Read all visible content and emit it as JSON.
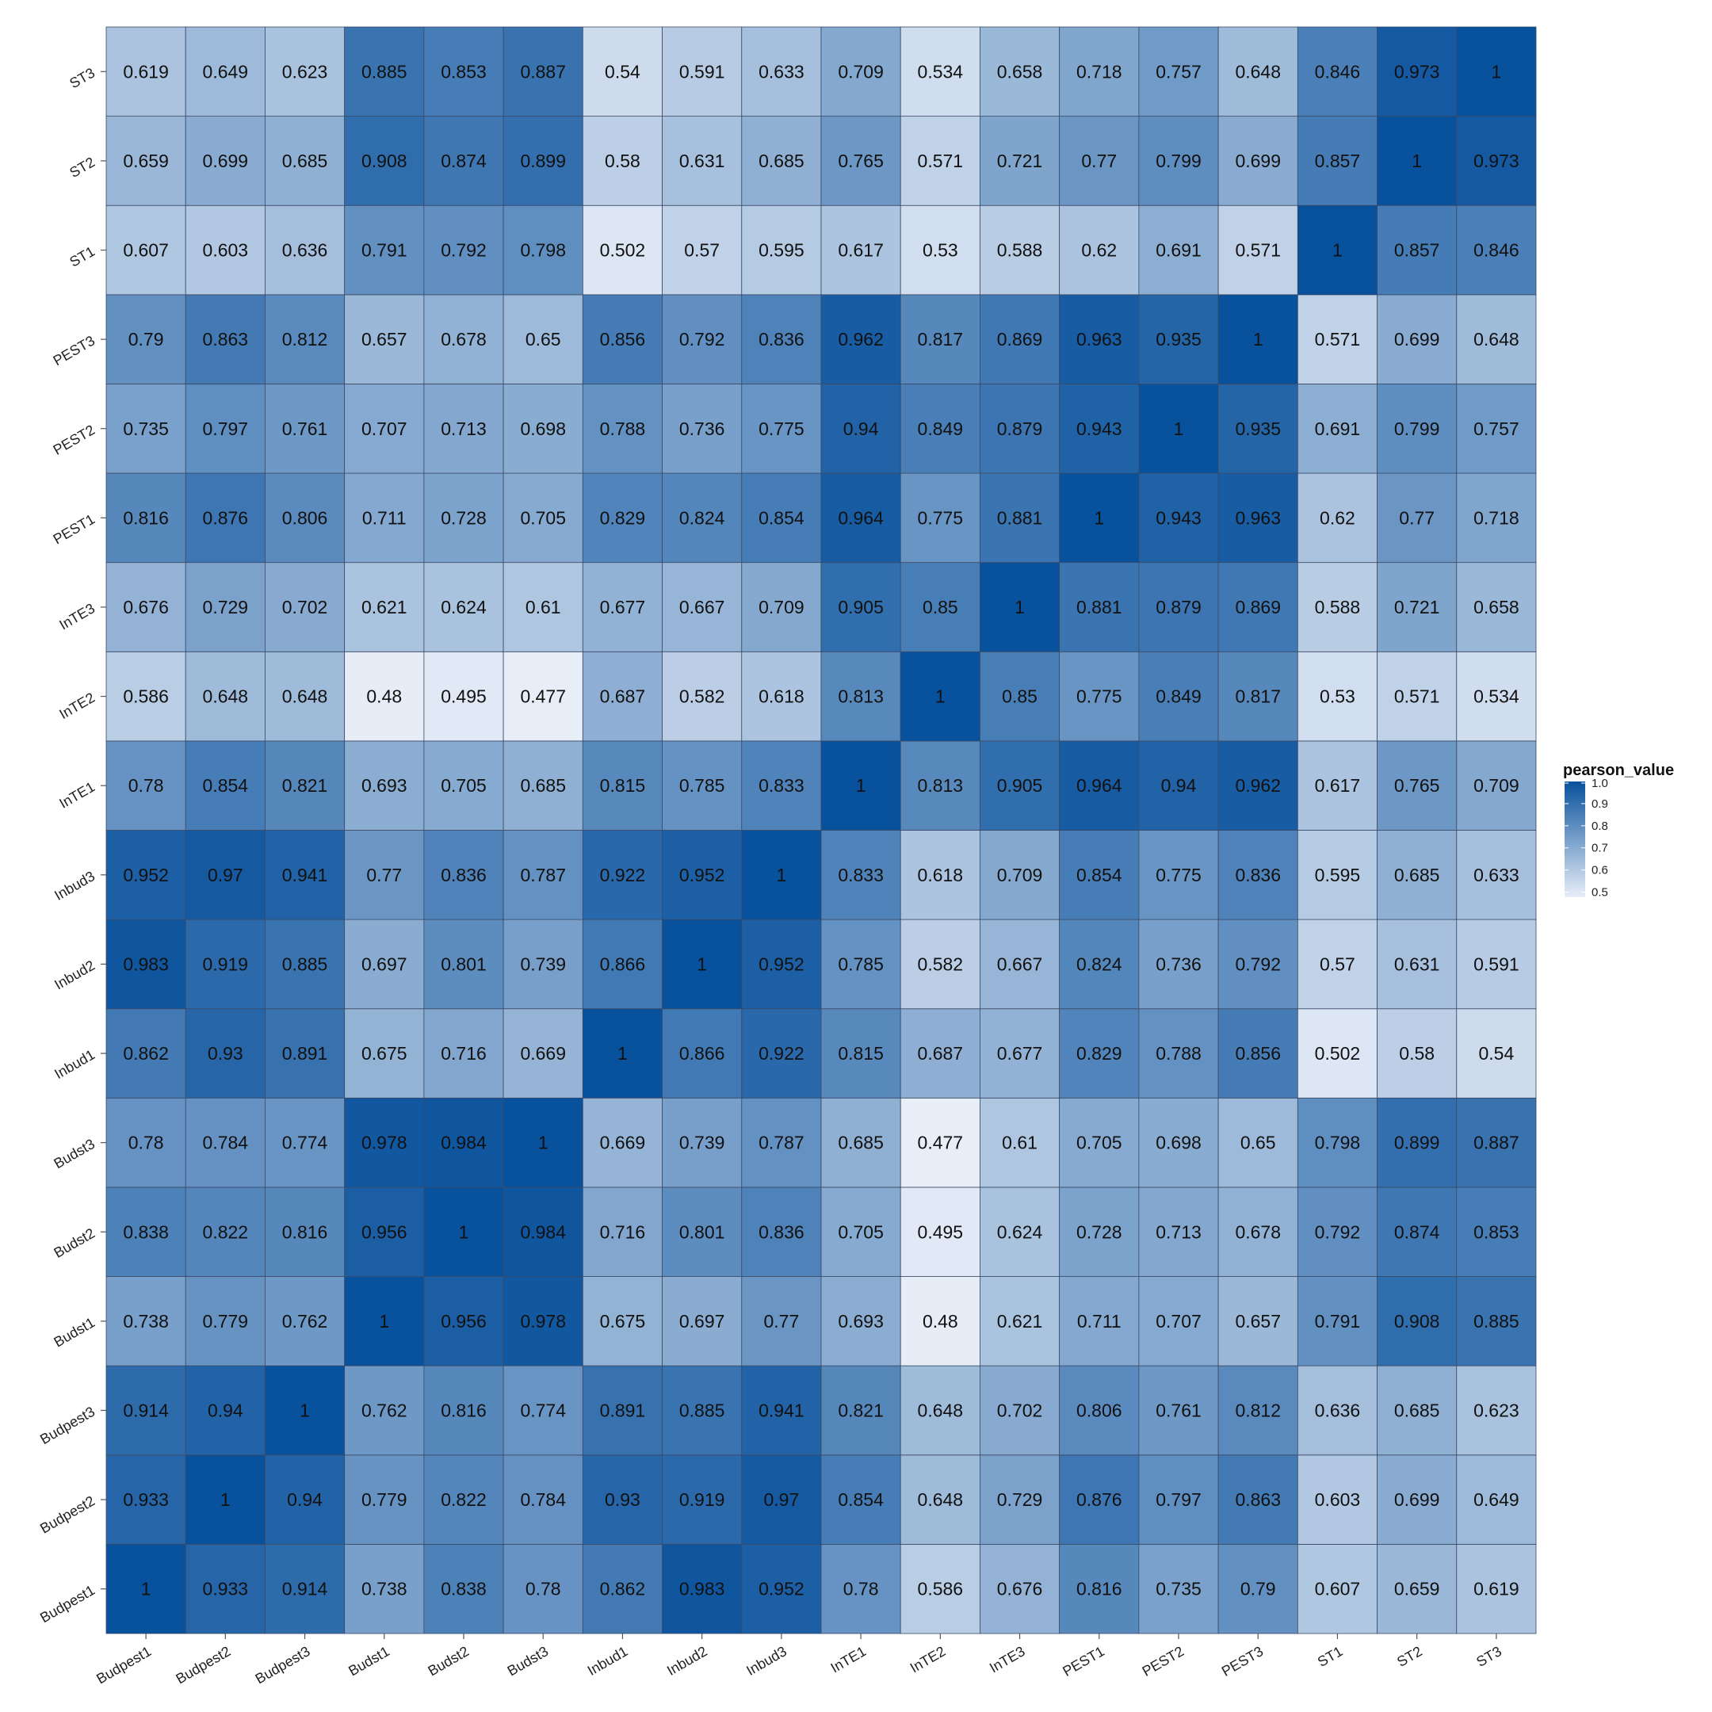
{
  "chart_data": {
    "type": "heatmap",
    "title": "",
    "xlabel": "",
    "ylabel": "",
    "x_categories": [
      "Budpest1",
      "Budpest2",
      "Budpest3",
      "Budst1",
      "Budst2",
      "Budst3",
      "Inbud1",
      "Inbud2",
      "Inbud3",
      "InTE1",
      "InTE2",
      "InTE3",
      "PEST1",
      "PEST2",
      "PEST3",
      "ST1",
      "ST2",
      "ST3"
    ],
    "y_categories": [
      "Budpest1",
      "Budpest2",
      "Budpest3",
      "Budst1",
      "Budst2",
      "Budst3",
      "Inbud1",
      "Inbud2",
      "Inbud3",
      "InTE1",
      "InTE2",
      "InTE3",
      "PEST1",
      "PEST2",
      "PEST3",
      "ST1",
      "ST2",
      "ST3"
    ],
    "values": [
      [
        "1",
        "0.933",
        "0.914",
        "0.738",
        "0.838",
        "0.78",
        "0.862",
        "0.983",
        "0.952",
        "0.78",
        "0.586",
        "0.676",
        "0.816",
        "0.735",
        "0.79",
        "0.607",
        "0.659",
        "0.619"
      ],
      [
        "0.933",
        "1",
        "0.94",
        "0.779",
        "0.822",
        "0.784",
        "0.93",
        "0.919",
        "0.97",
        "0.854",
        "0.648",
        "0.729",
        "0.876",
        "0.797",
        "0.863",
        "0.603",
        "0.699",
        "0.649"
      ],
      [
        "0.914",
        "0.94",
        "1",
        "0.762",
        "0.816",
        "0.774",
        "0.891",
        "0.885",
        "0.941",
        "0.821",
        "0.648",
        "0.702",
        "0.806",
        "0.761",
        "0.812",
        "0.636",
        "0.685",
        "0.623"
      ],
      [
        "0.738",
        "0.779",
        "0.762",
        "1",
        "0.956",
        "0.978",
        "0.675",
        "0.697",
        "0.77",
        "0.693",
        "0.48",
        "0.621",
        "0.711",
        "0.707",
        "0.657",
        "0.791",
        "0.908",
        "0.885"
      ],
      [
        "0.838",
        "0.822",
        "0.816",
        "0.956",
        "1",
        "0.984",
        "0.716",
        "0.801",
        "0.836",
        "0.705",
        "0.495",
        "0.624",
        "0.728",
        "0.713",
        "0.678",
        "0.792",
        "0.874",
        "0.853"
      ],
      [
        "0.78",
        "0.784",
        "0.774",
        "0.978",
        "0.984",
        "1",
        "0.669",
        "0.739",
        "0.787",
        "0.685",
        "0.477",
        "0.61",
        "0.705",
        "0.698",
        "0.65",
        "0.798",
        "0.899",
        "0.887"
      ],
      [
        "0.862",
        "0.93",
        "0.891",
        "0.675",
        "0.716",
        "0.669",
        "1",
        "0.866",
        "0.922",
        "0.815",
        "0.687",
        "0.677",
        "0.829",
        "0.788",
        "0.856",
        "0.502",
        "0.58",
        "0.54"
      ],
      [
        "0.983",
        "0.919",
        "0.885",
        "0.697",
        "0.801",
        "0.739",
        "0.866",
        "1",
        "0.952",
        "0.785",
        "0.582",
        "0.667",
        "0.824",
        "0.736",
        "0.792",
        "0.57",
        "0.631",
        "0.591"
      ],
      [
        "0.952",
        "0.97",
        "0.941",
        "0.77",
        "0.836",
        "0.787",
        "0.922",
        "0.952",
        "1",
        "0.833",
        "0.618",
        "0.709",
        "0.854",
        "0.775",
        "0.836",
        "0.595",
        "0.685",
        "0.633"
      ],
      [
        "0.78",
        "0.854",
        "0.821",
        "0.693",
        "0.705",
        "0.685",
        "0.815",
        "0.785",
        "0.833",
        "1",
        "0.813",
        "0.905",
        "0.964",
        "0.94",
        "0.962",
        "0.617",
        "0.765",
        "0.709"
      ],
      [
        "0.586",
        "0.648",
        "0.648",
        "0.48",
        "0.495",
        "0.477",
        "0.687",
        "0.582",
        "0.618",
        "0.813",
        "1",
        "0.85",
        "0.775",
        "0.849",
        "0.817",
        "0.53",
        "0.571",
        "0.534"
      ],
      [
        "0.676",
        "0.729",
        "0.702",
        "0.621",
        "0.624",
        "0.61",
        "0.677",
        "0.667",
        "0.709",
        "0.905",
        "0.85",
        "1",
        "0.881",
        "0.879",
        "0.869",
        "0.588",
        "0.721",
        "0.658"
      ],
      [
        "0.816",
        "0.876",
        "0.806",
        "0.711",
        "0.728",
        "0.705",
        "0.829",
        "0.824",
        "0.854",
        "0.964",
        "0.775",
        "0.881",
        "1",
        "0.943",
        "0.963",
        "0.62",
        "0.77",
        "0.718"
      ],
      [
        "0.735",
        "0.797",
        "0.761",
        "0.707",
        "0.713",
        "0.698",
        "0.788",
        "0.736",
        "0.775",
        "0.94",
        "0.849",
        "0.879",
        "0.943",
        "1",
        "0.935",
        "0.691",
        "0.799",
        "0.757"
      ],
      [
        "0.79",
        "0.863",
        "0.812",
        "0.657",
        "0.678",
        "0.65",
        "0.856",
        "0.792",
        "0.836",
        "0.962",
        "0.817",
        "0.869",
        "0.963",
        "0.935",
        "1",
        "0.571",
        "0.699",
        "0.648"
      ],
      [
        "0.607",
        "0.603",
        "0.636",
        "0.791",
        "0.792",
        "0.798",
        "0.502",
        "0.57",
        "0.595",
        "0.617",
        "0.53",
        "0.588",
        "0.62",
        "0.691",
        "0.571",
        "1",
        "0.857",
        "0.846"
      ],
      [
        "0.659",
        "0.699",
        "0.685",
        "0.908",
        "0.874",
        "0.899",
        "0.58",
        "0.631",
        "0.685",
        "0.765",
        "0.571",
        "0.721",
        "0.77",
        "0.799",
        "0.699",
        "0.857",
        "1",
        "0.973"
      ],
      [
        "0.619",
        "0.649",
        "0.623",
        "0.885",
        "0.853",
        "0.887",
        "0.54",
        "0.591",
        "0.633",
        "0.709",
        "0.534",
        "0.658",
        "0.718",
        "0.757",
        "0.648",
        "0.846",
        "0.973",
        "1"
      ]
    ],
    "value_range": [
      0.477,
      1
    ],
    "color_low": "#e8eef8",
    "color_high": "#08519c",
    "legend": {
      "title": "pearson_value",
      "ticks": [
        "1.0",
        "0.9",
        "0.8",
        "0.7",
        "0.6",
        "0.5"
      ],
      "placement": "right"
    },
    "grid": false
  }
}
